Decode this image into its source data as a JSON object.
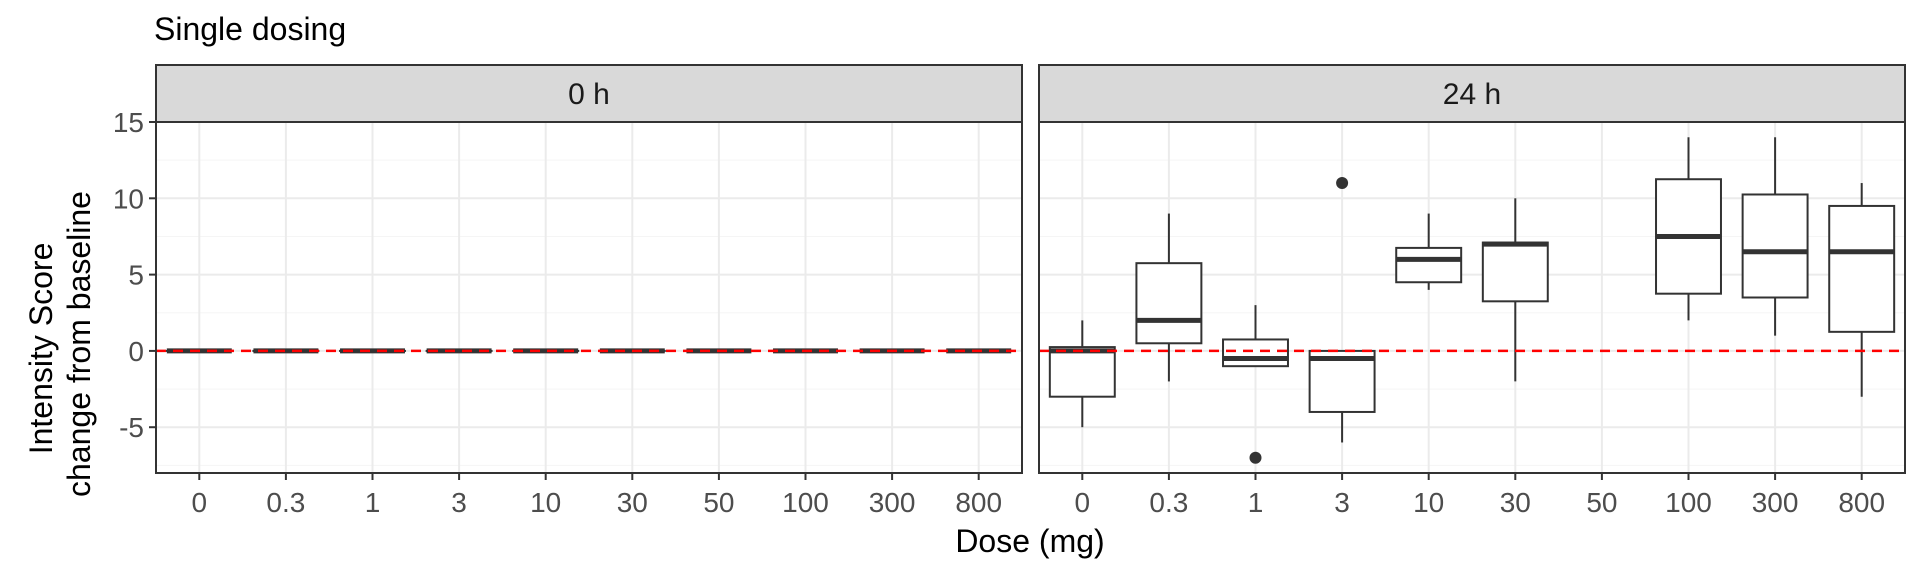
{
  "chart_data": {
    "type": "boxplot",
    "title": "Single dosing",
    "xlabel": "Dose (mg)",
    "ylabel_lines": [
      "Intensity Score",
      "change from baseline"
    ],
    "categories": [
      "0",
      "0.3",
      "1",
      "3",
      "10",
      "30",
      "50",
      "100",
      "300",
      "800"
    ],
    "ylim": [
      -8,
      15
    ],
    "y_ticks": [
      -5,
      0,
      5,
      10,
      15
    ],
    "y_tick_labels": [
      "-5",
      "0",
      "5",
      "10",
      "15"
    ],
    "reference_line": {
      "y": 0,
      "style": "dashed",
      "color": "#ff0000"
    },
    "grid": true,
    "panels": [
      {
        "label": "0 h",
        "boxes": [
          {
            "x": "0",
            "min": 0,
            "q1": 0,
            "median": 0,
            "q3": 0,
            "max": 0,
            "outliers": []
          },
          {
            "x": "0.3",
            "min": 0,
            "q1": 0,
            "median": 0,
            "q3": 0,
            "max": 0,
            "outliers": []
          },
          {
            "x": "1",
            "min": 0,
            "q1": 0,
            "median": 0,
            "q3": 0,
            "max": 0,
            "outliers": []
          },
          {
            "x": "3",
            "min": 0,
            "q1": 0,
            "median": 0,
            "q3": 0,
            "max": 0,
            "outliers": []
          },
          {
            "x": "10",
            "min": 0,
            "q1": 0,
            "median": 0,
            "q3": 0,
            "max": 0,
            "outliers": []
          },
          {
            "x": "30",
            "min": 0,
            "q1": 0,
            "median": 0,
            "q3": 0,
            "max": 0,
            "outliers": []
          },
          {
            "x": "50",
            "min": 0,
            "q1": 0,
            "median": 0,
            "q3": 0,
            "max": 0,
            "outliers": []
          },
          {
            "x": "100",
            "min": 0,
            "q1": 0,
            "median": 0,
            "q3": 0,
            "max": 0,
            "outliers": []
          },
          {
            "x": "300",
            "min": 0,
            "q1": 0,
            "median": 0,
            "q3": 0,
            "max": 0,
            "outliers": []
          },
          {
            "x": "800",
            "min": 0,
            "q1": 0,
            "median": 0,
            "q3": 0,
            "max": 0,
            "outliers": []
          }
        ]
      },
      {
        "label": "24 h",
        "boxes": [
          {
            "x": "0",
            "min": -5,
            "q1": -3,
            "median": 0,
            "q3": 0.25,
            "max": 2,
            "outliers": []
          },
          {
            "x": "0.3",
            "min": -2,
            "q1": 0.5,
            "median": 2,
            "q3": 5.75,
            "max": 9,
            "outliers": []
          },
          {
            "x": "1",
            "min": -1,
            "q1": -1,
            "median": -0.5,
            "q3": 0.75,
            "max": 3,
            "outliers": [
              -7
            ]
          },
          {
            "x": "3",
            "min": -6,
            "q1": -4,
            "median": -0.5,
            "q3": 0,
            "max": 0,
            "outliers": [
              11
            ]
          },
          {
            "x": "10",
            "min": 4,
            "q1": 4.5,
            "median": 6,
            "q3": 6.75,
            "max": 9,
            "outliers": []
          },
          {
            "x": "30",
            "min": -2,
            "q1": 3.25,
            "median": 7,
            "q3": 7.1,
            "max": 10,
            "outliers": []
          },
          {
            "x": "100",
            "min": 2,
            "q1": 3.75,
            "median": 7.5,
            "q3": 11.25,
            "max": 14,
            "outliers": []
          },
          {
            "x": "300",
            "min": 1,
            "q1": 3.5,
            "median": 6.5,
            "q3": 10.25,
            "max": 14,
            "outliers": []
          },
          {
            "x": "800",
            "min": -3,
            "q1": 1.25,
            "median": 6.5,
            "q3": 9.5,
            "max": 11,
            "outliers": []
          }
        ]
      }
    ],
    "colors": {
      "box_stroke": "#333333",
      "box_fill": "#ffffff",
      "grid_major": "#ebebeb",
      "grid_minor": "#f5f5f5",
      "strip_fill": "#d9d9d9",
      "panel_border": "#333333",
      "reference": "#ff0000"
    }
  }
}
